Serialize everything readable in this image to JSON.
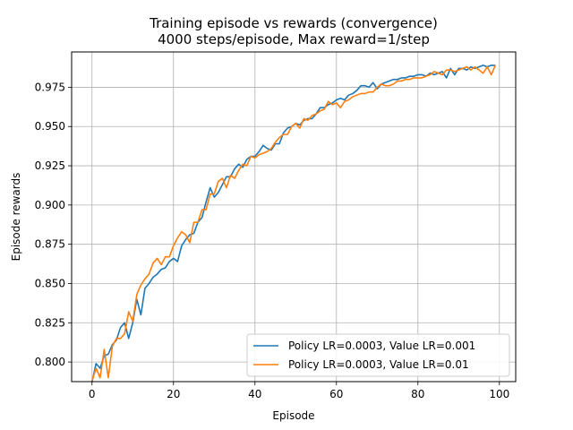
{
  "chart_data": {
    "type": "line",
    "title": "Training episode vs rewards (convergence)",
    "subtitle": "4000 steps/episode, Max reward=1/step",
    "xlabel": "Episode",
    "ylabel": "Episode rewards",
    "xlim": [
      -5,
      104
    ],
    "ylim": [
      0.7875,
      0.9975
    ],
    "xticks": [
      0,
      20,
      40,
      60,
      80,
      100
    ],
    "xtick_labels": [
      "0",
      "20",
      "40",
      "60",
      "80",
      "100"
    ],
    "yticks": [
      0.8,
      0.825,
      0.85,
      0.875,
      0.9,
      0.925,
      0.95,
      0.975
    ],
    "ytick_labels": [
      "0.800",
      "0.825",
      "0.850",
      "0.875",
      "0.900",
      "0.925",
      "0.950",
      "0.975"
    ],
    "grid": true,
    "legend_position": "lower-right",
    "x": [
      0,
      1,
      2,
      3,
      4,
      5,
      6,
      7,
      8,
      9,
      10,
      11,
      12,
      13,
      14,
      15,
      16,
      17,
      18,
      19,
      20,
      21,
      22,
      23,
      24,
      25,
      26,
      27,
      28,
      29,
      30,
      31,
      32,
      33,
      34,
      35,
      36,
      37,
      38,
      39,
      40,
      41,
      42,
      43,
      44,
      45,
      46,
      47,
      48,
      49,
      50,
      51,
      52,
      53,
      54,
      55,
      56,
      57,
      58,
      59,
      60,
      61,
      62,
      63,
      64,
      65,
      66,
      67,
      68,
      69,
      70,
      71,
      72,
      73,
      74,
      75,
      76,
      77,
      78,
      79,
      80,
      81,
      82,
      83,
      84,
      85,
      86,
      87,
      88,
      89,
      90,
      91,
      92,
      93,
      94,
      95,
      96,
      97,
      98,
      99
    ],
    "series": [
      {
        "name": "Policy LR=0.0003, Value LR=0.001",
        "color": "#1f77b4",
        "values": [
          0.787,
          0.799,
          0.796,
          0.804,
          0.805,
          0.811,
          0.814,
          0.822,
          0.825,
          0.815,
          0.825,
          0.84,
          0.83,
          0.847,
          0.85,
          0.854,
          0.856,
          0.859,
          0.86,
          0.864,
          0.866,
          0.864,
          0.874,
          0.878,
          0.881,
          0.882,
          0.889,
          0.892,
          0.902,
          0.911,
          0.905,
          0.908,
          0.913,
          0.918,
          0.918,
          0.923,
          0.926,
          0.924,
          0.929,
          0.931,
          0.931,
          0.934,
          0.938,
          0.936,
          0.935,
          0.939,
          0.939,
          0.946,
          0.949,
          0.95,
          0.952,
          0.951,
          0.954,
          0.955,
          0.955,
          0.958,
          0.962,
          0.962,
          0.964,
          0.965,
          0.967,
          0.968,
          0.967,
          0.97,
          0.971,
          0.973,
          0.976,
          0.976,
          0.975,
          0.978,
          0.974,
          0.977,
          0.978,
          0.979,
          0.98,
          0.98,
          0.981,
          0.981,
          0.982,
          0.982,
          0.983,
          0.983,
          0.982,
          0.984,
          0.983,
          0.984,
          0.985,
          0.981,
          0.987,
          0.983,
          0.987,
          0.987,
          0.986,
          0.988,
          0.987,
          0.988,
          0.989,
          0.988,
          0.989,
          0.989
        ]
      },
      {
        "name": "Policy LR=0.0003, Value LR=0.01",
        "color": "#ff7f0e",
        "values": [
          0.788,
          0.796,
          0.79,
          0.808,
          0.79,
          0.81,
          0.815,
          0.815,
          0.818,
          0.832,
          0.826,
          0.843,
          0.849,
          0.853,
          0.856,
          0.863,
          0.866,
          0.862,
          0.867,
          0.867,
          0.874,
          0.879,
          0.883,
          0.881,
          0.876,
          0.889,
          0.889,
          0.897,
          0.897,
          0.907,
          0.907,
          0.915,
          0.917,
          0.911,
          0.919,
          0.917,
          0.922,
          0.926,
          0.925,
          0.931,
          0.93,
          0.932,
          0.933,
          0.934,
          0.936,
          0.94,
          0.943,
          0.945,
          0.945,
          0.95,
          0.952,
          0.949,
          0.955,
          0.954,
          0.957,
          0.958,
          0.96,
          0.961,
          0.966,
          0.964,
          0.965,
          0.962,
          0.966,
          0.967,
          0.969,
          0.97,
          0.971,
          0.971,
          0.972,
          0.972,
          0.975,
          0.977,
          0.976,
          0.976,
          0.977,
          0.979,
          0.979,
          0.98,
          0.98,
          0.981,
          0.981,
          0.981,
          0.982,
          0.983,
          0.985,
          0.984,
          0.983,
          0.986,
          0.986,
          0.985,
          0.986,
          0.987,
          0.988,
          0.986,
          0.988,
          0.986,
          0.984,
          0.988,
          0.983,
          0.989
        ]
      }
    ]
  }
}
